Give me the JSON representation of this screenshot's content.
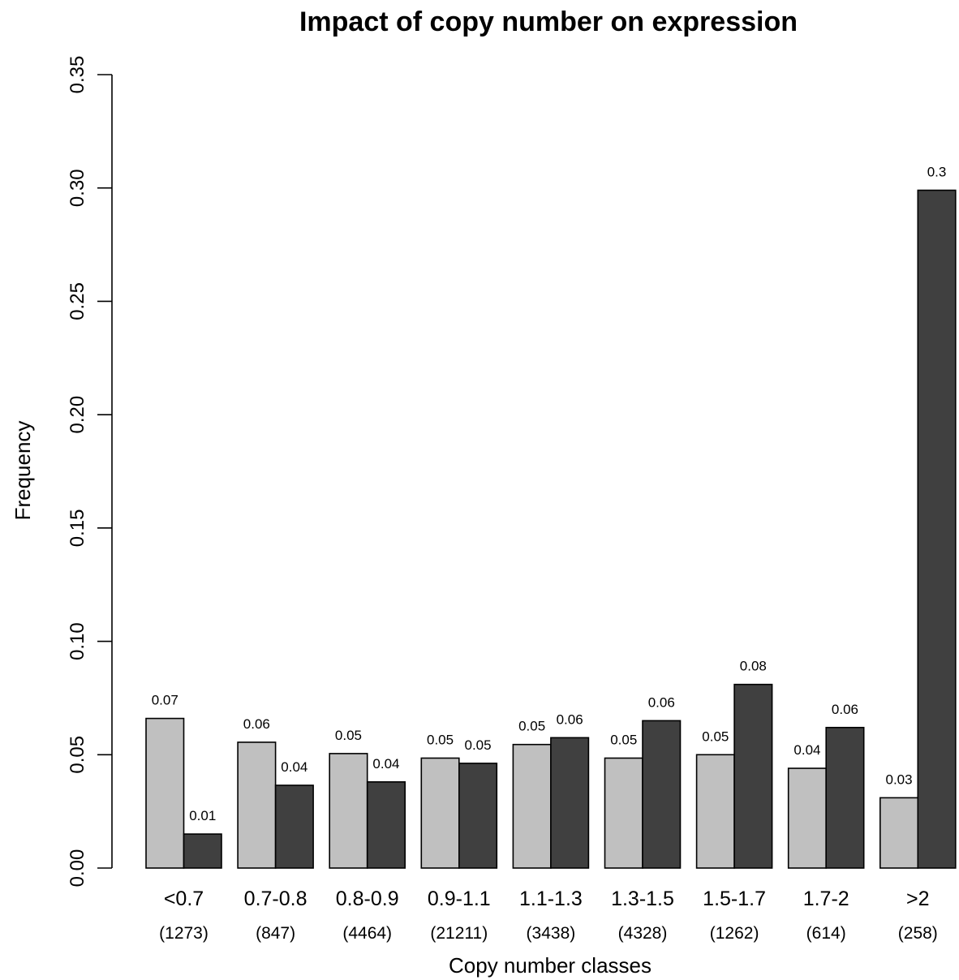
{
  "chart_data": {
    "type": "bar",
    "title": "Impact of copy number on expression",
    "xlabel": "Copy number classes",
    "ylabel": "Frequency",
    "ylim": [
      0,
      0.35
    ],
    "yticks": [
      "0.00",
      "0.05",
      "0.10",
      "0.15",
      "0.20",
      "0.25",
      "0.30",
      "0.35"
    ],
    "grid": false,
    "legend": "none",
    "categories": [
      "<0.7",
      "0.7-0.8",
      "0.8-0.9",
      "0.9-1.1",
      "1.1-1.3",
      "1.3-1.5",
      "1.5-1.7",
      "1.7-2",
      ">2"
    ],
    "counts": [
      "(1273)",
      "(847)",
      "(4464)",
      "(21211)",
      "(3438)",
      "(4328)",
      "(1262)",
      "(614)",
      "(258)"
    ],
    "series": [
      {
        "color": "#c0c0c0",
        "values": [
          0.066,
          0.0555,
          0.0505,
          0.0485,
          0.0545,
          0.0485,
          0.05,
          0.044,
          0.031
        ],
        "labels": [
          "0.07",
          "0.06",
          "0.05",
          "0.05",
          "0.05",
          "0.05",
          "0.05",
          "0.04",
          "0.03"
        ]
      },
      {
        "color": "#404040",
        "values": [
          0.015,
          0.0365,
          0.038,
          0.0462,
          0.0575,
          0.065,
          0.081,
          0.062,
          0.299
        ],
        "labels": [
          "0.01",
          "0.04",
          "0.04",
          "0.05",
          "0.06",
          "0.06",
          "0.08",
          "0.06",
          "0.3"
        ]
      }
    ]
  }
}
